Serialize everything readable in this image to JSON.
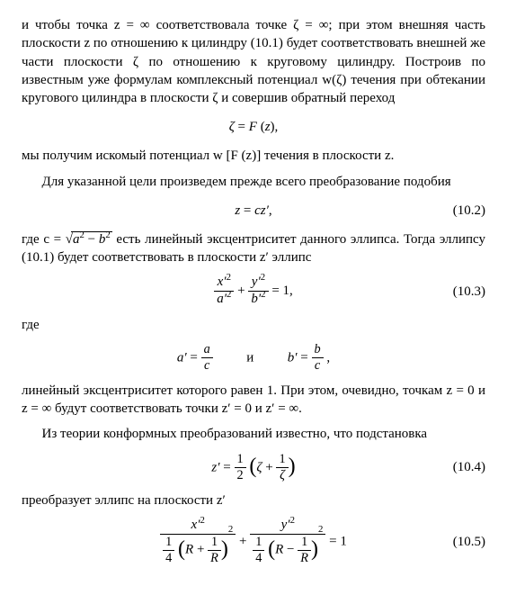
{
  "typography": {
    "body_font_family": "Times New Roman",
    "body_font_size_pt": 11,
    "line_height": 1.35,
    "text_color": "#000000",
    "background_color": "#ffffff",
    "eqnum_align": "right",
    "text_align": "justify",
    "indent_em": 1.5
  },
  "paragraphs": {
    "p1": "и чтобы точка z = ∞ соответствовала точке ζ = ∞; при этом внешняя часть плоскости z по отношению к цилиндру (10.1) будет соответствовать внешней же части плоскости ζ по отношению к круговому цилиндру. Построив по известным уже формулам комплексный потенциал w(ζ) течения при обтекании кругового цилиндра в плоскости ζ и совершив обратный переход",
    "p2": "мы получим искомый потенциал w [F (z)] течения в плоскости z.",
    "p3": "Для указанной цели произведем прежде всего преобразование подобия",
    "p4_prefix": "где c = ",
    "p4_rest": " есть линейный эксцентриситет данного эллипса. Тогда эллипсу (10.1) будет соответствовать в плоскости z′ эллипс",
    "p5": "где",
    "p6": "линейный эксцентриситет которого равен 1. При этом, очевидно, точкам z = 0 и z = ∞ будут соответствовать точки z′ = 0 и z′ = ∞.",
    "p7": "Из теории конформных преобразований известно, что подстановка",
    "p8": "преобразует эллипс на плоскости z′"
  },
  "equations": {
    "eqA": {
      "zeta": "ζ",
      "eq": "=",
      "F": "F",
      "z": "z"
    },
    "eq10_2": {
      "number": "(10.2)",
      "lhs_var": "z",
      "eq": "=",
      "c": "c",
      "zp": "z′"
    },
    "sqrt_expr": {
      "a": "a",
      "b": "b",
      "sup": "2",
      "minus": "−"
    },
    "eq10_3": {
      "number": "(10.3)",
      "x": "x′",
      "y": "y′",
      "a": "a′",
      "b": "b′",
      "sup": "2",
      "plus": "+",
      "eq": "= 1,"
    },
    "ab_def": {
      "ap": "a′",
      "a": "a",
      "c": "c",
      "bp": "b′",
      "b": "b",
      "and": "и",
      "eq": "=",
      "comma": ","
    },
    "eq10_4": {
      "number": "(10.4)",
      "zp": "z′",
      "eq": "=",
      "half_num": "1",
      "half_den": "2",
      "zeta": "ζ",
      "plus": "+",
      "one": "1"
    },
    "eq10_5": {
      "number": "(10.5)",
      "x": "x′",
      "y": "y′",
      "sup": "2",
      "quarter_num": "1",
      "quarter_den": "4",
      "R": "R",
      "plus": "+",
      "minus": "−",
      "one": "1",
      "eq": "= 1"
    }
  }
}
